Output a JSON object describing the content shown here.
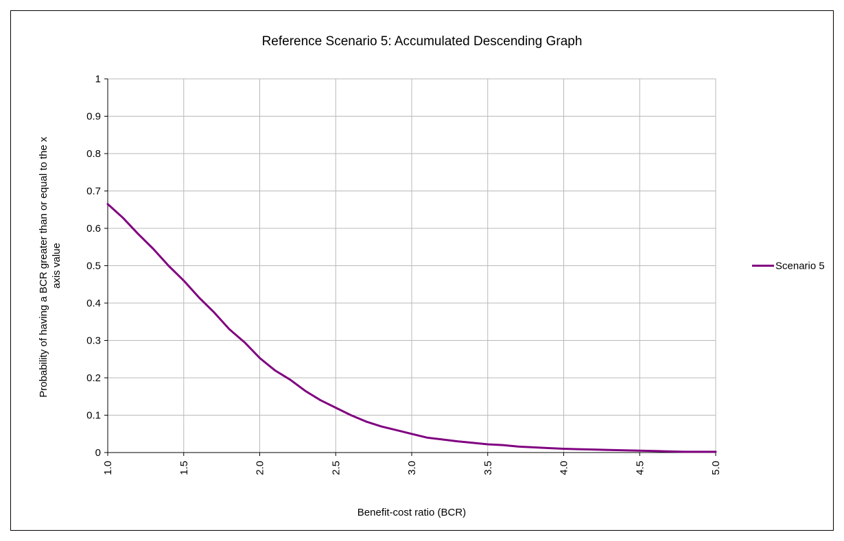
{
  "chart_data": {
    "type": "line",
    "title": "Reference Scenario 5: Accumulated Descending Graph",
    "xlabel": "Benefit-cost ratio (BCR)",
    "ylabel_lines": [
      "Probability of having a BCR greater than or equal to the x",
      "axis value"
    ],
    "xlim": [
      1.0,
      5.0
    ],
    "ylim": [
      0,
      1
    ],
    "x_ticks": [
      "1.0",
      "1.5",
      "2.0",
      "2.5",
      "3.0",
      "3.5",
      "4.0",
      "4.5",
      "5.0"
    ],
    "y_ticks": [
      "0",
      "0.1",
      "0.2",
      "0.3",
      "0.4",
      "0.5",
      "0.6",
      "0.7",
      "0.8",
      "0.9",
      "1"
    ],
    "grid": true,
    "legend_position": "right",
    "series": [
      {
        "name": "Scenario 5",
        "color": "#800080",
        "x": [
          1.0,
          1.1,
          1.2,
          1.3,
          1.4,
          1.5,
          1.6,
          1.7,
          1.8,
          1.9,
          2.0,
          2.1,
          2.2,
          2.3,
          2.4,
          2.5,
          2.6,
          2.7,
          2.8,
          2.9,
          3.0,
          3.1,
          3.2,
          3.3,
          3.4,
          3.5,
          3.6,
          3.7,
          3.8,
          3.9,
          4.0,
          4.1,
          4.2,
          4.3,
          4.4,
          4.5,
          4.6,
          4.7,
          4.8,
          4.9,
          5.0
        ],
        "y": [
          0.665,
          0.628,
          0.585,
          0.545,
          0.5,
          0.46,
          0.415,
          0.375,
          0.33,
          0.295,
          0.253,
          0.22,
          0.195,
          0.165,
          0.14,
          0.12,
          0.1,
          0.083,
          0.07,
          0.06,
          0.05,
          0.04,
          0.035,
          0.03,
          0.026,
          0.022,
          0.02,
          0.016,
          0.014,
          0.012,
          0.01,
          0.009,
          0.008,
          0.007,
          0.006,
          0.005,
          0.004,
          0.003,
          0.002,
          0.002,
          0.002
        ]
      }
    ]
  }
}
